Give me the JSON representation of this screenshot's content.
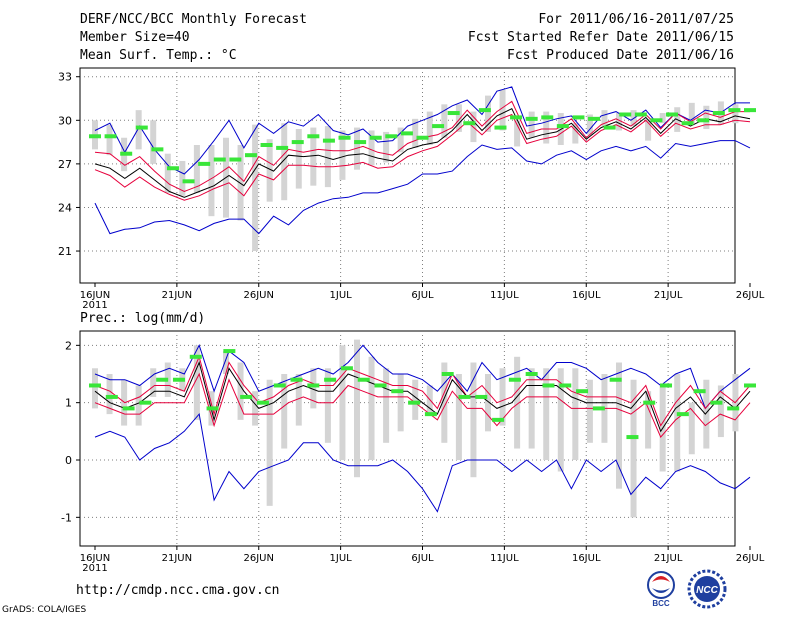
{
  "header": {
    "title": "DERF/NCC/BCC Monthly Forecast",
    "member_size": "Member Size=40",
    "variable": "Mean Surf. Temp.: °C",
    "forecast_period": "For 2011/06/16-2011/07/25",
    "start_date": "Fcst Started Refer Date 2011/06/15",
    "produced_date": "Fcst Produced Date 2011/06/16"
  },
  "footer": {
    "url": "http://cmdp.ncc.cma.gov.cn",
    "credit": "GrADS: COLA/IGES",
    "logo_bcc": "BCC",
    "logo_ncc": "NCC"
  },
  "colors": {
    "ensemble_bar": "#d4d4d4",
    "climatology": "#39e639",
    "mean": "#000000",
    "spread": "#e6003c",
    "envelope": "#0000cc",
    "grid": "#7f7f7f"
  },
  "chart_data": [
    {
      "type": "line",
      "panel": "temperature",
      "title": "Mean Surf. Temp.: °C",
      "x_ticks": [
        "16JUN",
        "21JUN",
        "26JUN",
        "1JUL",
        "6JUL",
        "11JUL",
        "16JUL",
        "21JUL",
        "26JUL"
      ],
      "x_year": "2011",
      "days": 40,
      "ylim": [
        18.8,
        33.6
      ],
      "y_ticks": [
        21,
        24,
        27,
        30,
        33
      ],
      "series": [
        {
          "name": "max",
          "values": [
            29.3,
            29.8,
            27.8,
            29.6,
            28.0,
            26.8,
            26.3,
            27.3,
            28.6,
            30.0,
            28.1,
            29.8,
            29.1,
            29.9,
            29.6,
            30.4,
            29.3,
            29.0,
            29.4,
            28.5,
            28.6,
            29.6,
            30.0,
            30.4,
            31.0,
            31.4,
            30.4,
            32.0,
            32.3,
            29.6,
            29.8,
            30.1,
            30.3,
            29.1,
            30.3,
            30.6,
            30.0,
            30.7,
            29.5,
            30.5,
            30.0,
            30.7,
            30.5,
            31.2,
            31.2
          ]
        },
        {
          "name": "upper",
          "values": [
            27.8,
            27.7,
            26.9,
            27.5,
            26.5,
            25.6,
            25.1,
            25.5,
            26.1,
            26.8,
            25.8,
            27.5,
            26.9,
            28.0,
            27.8,
            28.0,
            27.9,
            27.9,
            28.2,
            27.8,
            27.6,
            28.4,
            28.8,
            29.0,
            29.5,
            30.7,
            29.6,
            30.6,
            31.3,
            29.1,
            29.4,
            29.4,
            30.1,
            28.8,
            29.7,
            30.1,
            29.6,
            30.4,
            29.4,
            30.5,
            29.9,
            30.5,
            30.2,
            30.6,
            30.6
          ]
        },
        {
          "name": "mean",
          "values": [
            27.0,
            26.7,
            26.0,
            26.7,
            25.9,
            25.1,
            24.7,
            25.1,
            25.5,
            26.2,
            25.5,
            27.0,
            26.5,
            27.6,
            27.5,
            27.6,
            27.3,
            27.6,
            27.7,
            27.4,
            27.2,
            28.0,
            28.3,
            28.5,
            29.3,
            30.4,
            29.3,
            30.3,
            30.8,
            28.7,
            29.0,
            29.2,
            29.8,
            28.7,
            29.5,
            29.9,
            29.4,
            30.2,
            29.1,
            30.1,
            29.6,
            30.1,
            29.9,
            30.3,
            30.1
          ]
        },
        {
          "name": "lower",
          "values": [
            26.6,
            26.2,
            25.4,
            26.1,
            25.4,
            24.9,
            24.5,
            24.8,
            25.3,
            25.7,
            24.8,
            26.3,
            25.9,
            26.9,
            26.9,
            26.8,
            26.8,
            26.9,
            27.1,
            26.7,
            26.8,
            27.5,
            27.9,
            28.2,
            29.0,
            29.9,
            29.0,
            30.0,
            30.4,
            28.4,
            28.7,
            28.9,
            29.6,
            28.5,
            29.3,
            29.7,
            29.2,
            30.0,
            28.9,
            29.8,
            29.4,
            29.7,
            29.7,
            30.0,
            29.9
          ]
        },
        {
          "name": "min",
          "values": [
            24.3,
            22.2,
            22.5,
            22.6,
            23.0,
            23.1,
            22.8,
            22.4,
            22.9,
            23.2,
            23.2,
            22.2,
            23.4,
            22.8,
            23.8,
            24.3,
            24.6,
            24.7,
            25.0,
            25.0,
            25.3,
            25.6,
            26.3,
            26.3,
            26.5,
            27.5,
            28.3,
            28.0,
            28.1,
            27.2,
            27.0,
            27.6,
            27.9,
            27.3,
            27.9,
            28.2,
            27.9,
            28.2,
            27.4,
            28.4,
            28.2,
            28.4,
            28.6,
            28.6,
            28.1
          ]
        }
      ],
      "ensemble_bars": {
        "low": [
          28.0,
          27.6,
          26.5,
          28.0,
          27.0,
          25.0,
          24.8,
          25.0,
          23.4,
          23.3,
          23.1,
          21.0,
          24.4,
          24.5,
          25.3,
          25.5,
          25.4,
          25.9,
          26.6,
          26.9,
          27.1,
          27.8,
          28.1,
          28.3,
          28.8,
          29.2,
          28.5,
          29.2,
          29.3,
          28.2,
          28.8,
          28.4,
          28.3,
          28.4,
          29.0,
          29.6,
          29.3,
          29.6,
          28.6,
          29.8,
          29.2,
          29.8,
          29.4,
          29.7,
          29.8
        ],
        "high": [
          30.0,
          29.7,
          28.8,
          30.7,
          30.0,
          27.7,
          27.2,
          28.3,
          28.3,
          28.8,
          28.3,
          29.7,
          28.7,
          29.8,
          29.4,
          29.5,
          29.6,
          29.3,
          29.5,
          29.3,
          29.2,
          29.5,
          30.1,
          30.6,
          31.1,
          31.1,
          30.6,
          31.7,
          32.1,
          30.0,
          30.6,
          30.6,
          30.5,
          29.8,
          30.4,
          30.7,
          30.5,
          30.7,
          30.1,
          30.5,
          30.9,
          31.2,
          31.0,
          31.3,
          31.1
        ],
        "count": 40
      },
      "climatology": [
        28.9,
        28.9,
        27.7,
        29.5,
        28.0,
        26.7,
        25.8,
        27.0,
        27.3,
        27.3,
        27.6,
        28.3,
        28.1,
        28.5,
        28.9,
        28.6,
        28.8,
        28.5,
        28.8,
        28.9,
        29.1,
        28.8,
        29.6,
        30.5,
        29.8,
        30.7,
        29.5,
        30.2,
        30.1,
        30.2,
        29.6,
        30.2,
        30.1,
        29.5,
        30.4,
        30.4,
        30.0,
        30.4,
        29.8,
        30.0,
        30.5,
        30.7,
        30.7
      ]
    },
    {
      "type": "line",
      "panel": "precipitation",
      "title": "Prec.: log(mm/d)",
      "x_ticks": [
        "16JUN",
        "21JUN",
        "26JUN",
        "1JUL",
        "6JUL",
        "11JUL",
        "16JUL",
        "21JUL",
        "26JUL"
      ],
      "x_year": "2011",
      "days": 40,
      "ylim": [
        -1.5,
        2.25
      ],
      "y_ticks": [
        -1,
        0,
        1,
        2
      ],
      "series": [
        {
          "name": "max",
          "values": [
            1.5,
            1.4,
            1.4,
            1.3,
            1.5,
            1.6,
            1.5,
            2.0,
            1.2,
            1.9,
            1.7,
            1.2,
            1.3,
            1.4,
            1.5,
            1.6,
            1.5,
            1.7,
            2.0,
            1.7,
            1.5,
            1.5,
            1.4,
            1.2,
            1.5,
            1.2,
            1.7,
            1.4,
            1.5,
            1.6,
            1.4,
            1.7,
            1.7,
            1.6,
            1.4,
            1.5,
            1.6,
            1.5,
            1.3,
            1.5,
            1.6,
            0.9,
            1.2,
            1.4,
            1.6
          ]
        },
        {
          "name": "upper",
          "values": [
            1.3,
            1.2,
            1.0,
            1.1,
            1.3,
            1.3,
            1.2,
            1.8,
            0.8,
            1.7,
            1.3,
            1.0,
            1.1,
            1.3,
            1.4,
            1.3,
            1.3,
            1.6,
            1.5,
            1.4,
            1.3,
            1.3,
            1.2,
            0.9,
            1.5,
            1.1,
            1.3,
            1.0,
            1.1,
            1.4,
            1.4,
            1.4,
            1.2,
            1.1,
            1.1,
            1.1,
            1.0,
            1.3,
            0.6,
            1.0,
            1.3,
            0.9,
            1.2,
            1.0,
            1.3
          ]
        },
        {
          "name": "mean",
          "values": [
            1.2,
            1.0,
            0.9,
            1.0,
            1.2,
            1.2,
            1.1,
            1.7,
            0.7,
            1.6,
            1.2,
            0.9,
            1.0,
            1.2,
            1.3,
            1.2,
            1.2,
            1.5,
            1.4,
            1.3,
            1.2,
            1.2,
            1.0,
            0.8,
            1.4,
            1.1,
            1.1,
            0.9,
            1.0,
            1.3,
            1.3,
            1.3,
            1.1,
            1.0,
            1.0,
            1.0,
            0.9,
            1.2,
            0.5,
            0.9,
            1.1,
            0.8,
            1.1,
            0.9,
            1.2
          ]
        },
        {
          "name": "lower",
          "values": [
            1.0,
            0.9,
            0.8,
            0.8,
            1.0,
            1.0,
            1.0,
            1.5,
            0.6,
            1.4,
            0.8,
            0.8,
            0.8,
            1.0,
            1.1,
            1.0,
            1.0,
            1.3,
            1.2,
            1.1,
            1.1,
            1.1,
            0.9,
            0.7,
            1.2,
            0.9,
            0.9,
            0.6,
            0.9,
            1.1,
            1.1,
            1.1,
            0.9,
            0.9,
            0.9,
            0.9,
            0.8,
            1.0,
            0.4,
            0.7,
            0.9,
            0.6,
            0.8,
            0.7,
            1.0
          ]
        },
        {
          "name": "min",
          "values": [
            0.4,
            0.5,
            0.4,
            0.0,
            0.2,
            0.3,
            0.5,
            0.8,
            -0.7,
            -0.2,
            -0.5,
            -0.2,
            -0.1,
            0.0,
            0.3,
            0.3,
            0.0,
            -0.1,
            -0.1,
            -0.1,
            0.0,
            -0.2,
            -0.5,
            -0.9,
            -0.1,
            0.0,
            0.0,
            0.0,
            -0.2,
            0.0,
            -0.2,
            0.0,
            -0.5,
            0.0,
            -0.2,
            0.0,
            -0.6,
            -0.3,
            -0.5,
            -0.2,
            -0.1,
            -0.2,
            -0.4,
            -0.5,
            -0.3
          ]
        }
      ],
      "ensemble_bars": {
        "low": [
          0.9,
          0.8,
          0.6,
          0.6,
          1.1,
          1.1,
          1.2,
          0.7,
          0.6,
          1.5,
          0.7,
          0.6,
          -0.8,
          0.2,
          0.6,
          0.9,
          0.3,
          0.0,
          -0.3,
          0.0,
          0.3,
          0.5,
          0.7,
          0.8,
          0.3,
          0.0,
          -0.3,
          0.5,
          0.6,
          0.2,
          0.2,
          0.0,
          -0.2,
          0.0,
          0.3,
          0.3,
          -0.5,
          -1.0,
          0.2,
          -0.2,
          -0.2,
          0.1,
          0.2,
          0.4,
          0.5
        ],
        "high": [
          1.6,
          1.5,
          1.4,
          1.3,
          1.6,
          1.7,
          1.6,
          2.0,
          1.2,
          1.9,
          1.7,
          1.2,
          1.4,
          1.5,
          1.5,
          1.6,
          1.6,
          2.0,
          2.1,
          1.8,
          1.6,
          1.5,
          1.4,
          1.3,
          1.7,
          1.5,
          1.7,
          1.5,
          1.6,
          1.8,
          1.6,
          1.6,
          1.6,
          1.6,
          1.4,
          1.5,
          1.7,
          1.4,
          1.2,
          1.3,
          1.5,
          1.0,
          1.4,
          1.3,
          1.5
        ],
        "count": 40
      },
      "climatology": [
        1.3,
        1.1,
        0.9,
        1.0,
        1.4,
        1.4,
        1.8,
        0.9,
        1.9,
        1.1,
        1.0,
        1.3,
        1.4,
        1.3,
        1.4,
        1.6,
        1.4,
        1.3,
        1.2,
        1.0,
        0.8,
        1.5,
        1.1,
        1.1,
        0.7,
        1.4,
        1.5,
        1.3,
        1.3,
        1.2,
        0.9,
        1.4,
        0.4,
        1.0,
        1.3,
        0.8,
        1.2,
        1.0,
        0.9,
        1.3
      ]
    }
  ]
}
